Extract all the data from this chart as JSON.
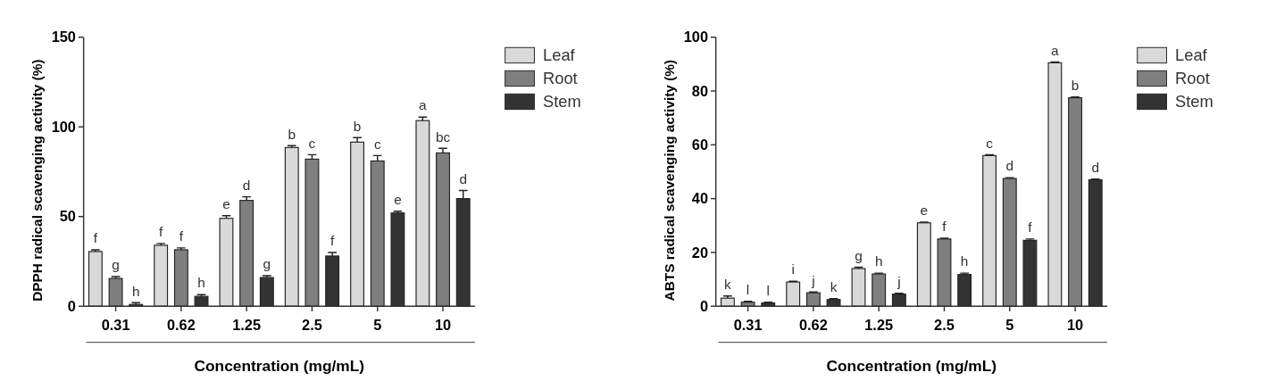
{
  "chart_data": [
    {
      "type": "bar",
      "xlabel": "Concentration (mg/mL)",
      "ylabel": "DPPH radical scavenging activity (%)",
      "categories": [
        "0.31",
        "0.62",
        "1.25",
        "2.5",
        "5",
        "10"
      ],
      "ylim": [
        0,
        150
      ],
      "yticks": [
        0,
        50,
        100,
        150
      ],
      "legend": "right",
      "grid": false,
      "series": [
        {
          "name": "Leaf",
          "color": "#d9d9d9",
          "values": [
            30.5,
            34,
            49,
            88.5,
            91.5,
            103.5
          ],
          "errors": [
            1,
            1,
            1.5,
            1,
            2.5,
            2
          ],
          "value_labels": [
            "f",
            "f",
            "e",
            "b",
            "b",
            "a"
          ]
        },
        {
          "name": "Root",
          "color": "#7f7f7f",
          "values": [
            15.5,
            31.5,
            59,
            82,
            81,
            85.5
          ],
          "errors": [
            1,
            1,
            2,
            2.5,
            3,
            2.5
          ],
          "value_labels": [
            "g",
            "f",
            "d",
            "c",
            "c",
            "bc"
          ]
        },
        {
          "name": "Stem",
          "color": "#333333",
          "values": [
            1,
            5.5,
            16,
            28,
            52,
            60
          ],
          "errors": [
            1,
            1,
            1,
            2,
            1,
            4.5
          ],
          "value_labels": [
            "h",
            "h",
            "g",
            "f",
            "e",
            "d"
          ]
        }
      ]
    },
    {
      "type": "bar",
      "xlabel": "Concentration (mg/mL)",
      "ylabel": "ABTS radical scavenging activity (%)",
      "categories": [
        "0.31",
        "0.62",
        "1.25",
        "2.5",
        "5",
        "10"
      ],
      "ylim": [
        0,
        100
      ],
      "yticks": [
        0,
        20,
        40,
        60,
        80,
        100
      ],
      "legend": "right",
      "grid": false,
      "series": [
        {
          "name": "Leaf",
          "color": "#d9d9d9",
          "values": [
            3,
            9,
            14,
            31,
            56,
            90.5
          ],
          "errors": [
            0.8,
            0.3,
            0.5,
            0.3,
            0.3,
            0.3
          ],
          "value_labels": [
            "k",
            "i",
            "g",
            "e",
            "c",
            "a"
          ]
        },
        {
          "name": "Root",
          "color": "#7f7f7f",
          "values": [
            1.5,
            5,
            12,
            25,
            47.5,
            77.5
          ],
          "errors": [
            0.3,
            0.3,
            0.3,
            0.3,
            0.3,
            0.3
          ],
          "value_labels": [
            "l",
            "j",
            "h",
            "f",
            "d",
            "b"
          ]
        },
        {
          "name": "Stem",
          "color": "#333333",
          "values": [
            1.2,
            2.5,
            4.5,
            11.8,
            24.5,
            47
          ],
          "errors": [
            0.3,
            0.3,
            0.3,
            0.5,
            0.5,
            0.3
          ],
          "value_labels": [
            "l",
            "k",
            "j",
            "h",
            "f",
            "d"
          ]
        }
      ]
    }
  ]
}
